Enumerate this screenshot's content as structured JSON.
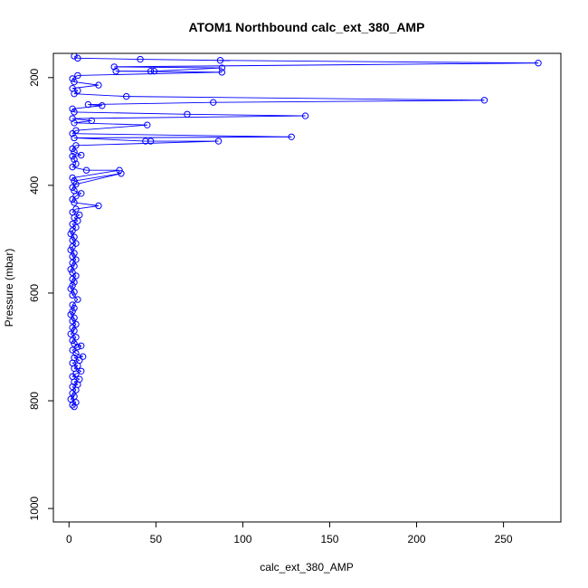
{
  "chart_data": {
    "type": "line",
    "title": "ATOM1 Northbound calc_ext_380_AMP",
    "xlabel": "calc_ext_380_AMP",
    "ylabel": "Pressure (mbar)",
    "xlim": [
      -9,
      283
    ],
    "ylim": [
      1025,
      155
    ],
    "y_reversed": true,
    "x_ticks": [
      0,
      50,
      100,
      150,
      200,
      250
    ],
    "y_ticks": [
      200,
      400,
      600,
      800,
      1000
    ],
    "x_tick_labels": [
      "0",
      "50",
      "100",
      "150",
      "200",
      "250"
    ],
    "y_tick_labels": [
      "200",
      "400",
      "600",
      "800",
      "1000"
    ],
    "grid": false,
    "legend": "none",
    "colors": {
      "series": "#0000ff",
      "axis": "#000000",
      "background": "#ffffff"
    },
    "series": [
      {
        "style": "lines+open-circles",
        "points": [
          [
            3,
            811
          ],
          [
            2,
            808
          ],
          [
            4,
            803
          ],
          [
            1,
            797
          ],
          [
            3,
            792
          ],
          [
            2,
            786
          ],
          [
            4,
            780
          ],
          [
            2,
            774
          ],
          [
            5,
            770
          ],
          [
            3,
            765
          ],
          [
            6,
            760
          ],
          [
            2,
            755
          ],
          [
            4,
            750
          ],
          [
            7,
            745
          ],
          [
            3,
            740
          ],
          [
            5,
            735
          ],
          [
            2,
            730
          ],
          [
            6,
            725
          ],
          [
            3,
            720
          ],
          [
            8,
            718
          ],
          [
            4,
            712
          ],
          [
            2,
            706
          ],
          [
            5,
            700
          ],
          [
            7,
            698
          ],
          [
            3,
            694
          ],
          [
            2,
            688
          ],
          [
            4,
            682
          ],
          [
            1,
            676
          ],
          [
            3,
            670
          ],
          [
            2,
            664
          ],
          [
            4,
            658
          ],
          [
            2,
            652
          ],
          [
            3,
            646
          ],
          [
            1,
            640
          ],
          [
            2,
            634
          ],
          [
            3,
            628
          ],
          [
            2,
            622
          ],
          [
            5,
            612
          ],
          [
            2,
            604
          ],
          [
            3,
            598
          ],
          [
            1,
            592
          ],
          [
            2,
            586
          ],
          [
            3,
            580
          ],
          [
            2,
            574
          ],
          [
            4,
            568
          ],
          [
            2,
            562
          ],
          [
            1,
            556
          ],
          [
            3,
            550
          ],
          [
            2,
            544
          ],
          [
            4,
            538
          ],
          [
            2,
            532
          ],
          [
            3,
            526
          ],
          [
            1,
            520
          ],
          [
            2,
            514
          ],
          [
            4,
            508
          ],
          [
            2,
            502
          ],
          [
            3,
            496
          ],
          [
            1,
            490
          ],
          [
            2,
            484
          ],
          [
            4,
            478
          ],
          [
            2,
            472
          ],
          [
            5,
            466
          ],
          [
            3,
            460
          ],
          [
            6,
            455
          ],
          [
            2,
            450
          ],
          [
            4,
            444
          ],
          [
            17,
            438
          ],
          [
            3,
            432
          ],
          [
            2,
            426
          ],
          [
            4,
            420
          ],
          [
            7,
            415
          ],
          [
            3,
            410
          ],
          [
            2,
            404
          ],
          [
            4,
            398
          ],
          [
            30,
            378
          ],
          [
            3,
            392
          ],
          [
            2,
            386
          ],
          [
            29,
            372
          ],
          [
            10,
            372
          ],
          [
            2,
            366
          ],
          [
            4,
            360
          ],
          [
            3,
            352
          ],
          [
            2,
            346
          ],
          [
            7,
            344
          ],
          [
            3,
            338
          ],
          [
            2,
            332
          ],
          [
            4,
            326
          ],
          [
            86,
            318
          ],
          [
            47,
            318
          ],
          [
            44,
            318
          ],
          [
            3,
            312
          ],
          [
            128,
            310
          ],
          [
            2,
            304
          ],
          [
            4,
            298
          ],
          [
            45,
            288
          ],
          [
            3,
            284
          ],
          [
            13,
            280
          ],
          [
            2,
            276
          ],
          [
            136,
            271
          ],
          [
            68,
            268
          ],
          [
            3,
            264
          ],
          [
            2,
            258
          ],
          [
            19,
            252
          ],
          [
            11,
            250
          ],
          [
            83,
            246
          ],
          [
            239,
            242
          ],
          [
            33,
            235
          ],
          [
            3,
            230
          ],
          [
            5,
            224
          ],
          [
            2,
            220
          ],
          [
            17,
            214
          ],
          [
            3,
            208
          ],
          [
            2,
            202
          ],
          [
            5,
            196
          ],
          [
            88,
            190
          ],
          [
            27,
            188
          ],
          [
            47,
            188
          ],
          [
            49,
            188
          ],
          [
            88,
            182
          ],
          [
            26,
            180
          ],
          [
            270,
            173
          ],
          [
            87,
            168
          ],
          [
            41,
            166
          ],
          [
            5,
            164
          ],
          [
            3,
            160
          ]
        ]
      }
    ]
  }
}
